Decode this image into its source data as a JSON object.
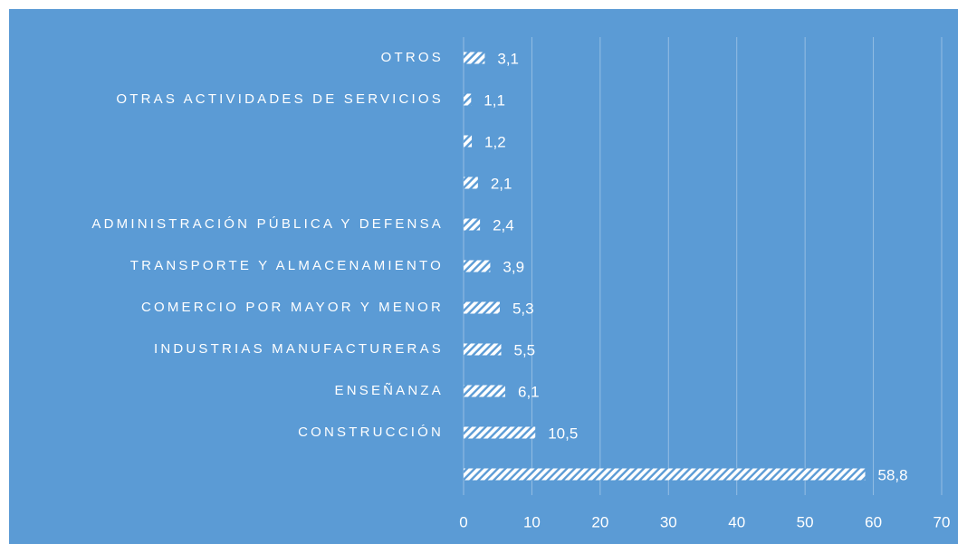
{
  "chart_data": {
    "type": "bar",
    "orientation": "horizontal",
    "categories": [
      "OTROS",
      "OTRAS ACTIVIDADES DE SERVICIOS",
      null,
      null,
      "ADMINISTRACIÓN PÚBLICA Y DEFENSA",
      "TRANSPORTE Y ALMACENAMIENTO",
      "COMERCIO POR MAYOR Y MENOR",
      "INDUSTRIAS MANUFACTURERAS",
      "ENSEÑANZA",
      "CONSTRUCCIÓN",
      null
    ],
    "values": [
      3.1,
      1.1,
      1.2,
      2.1,
      2.4,
      3.9,
      5.3,
      5.5,
      6.1,
      10.5,
      58.8
    ],
    "value_labels": [
      "3,1",
      "1,1",
      "1,2",
      "2,1",
      "2,4",
      "3,9",
      "5,3",
      "5,5",
      "6,1",
      "10,5",
      "58,8"
    ],
    "xlim": [
      0,
      70
    ],
    "xticks": [
      0,
      10,
      20,
      30,
      40,
      50,
      60,
      70
    ],
    "grid": true,
    "color": "#ffffff"
  }
}
